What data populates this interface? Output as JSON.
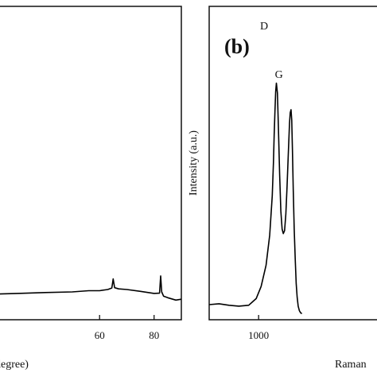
{
  "chart_data": [
    {
      "panel": "a",
      "type": "line",
      "title": "",
      "xlabel": "degree)",
      "ylabel": "",
      "xlim": [
        22,
        90
      ],
      "ylim": [
        0,
        100
      ],
      "xticks": [
        60,
        80
      ],
      "xtick_labels": [
        "60",
        "80"
      ],
      "grid": false,
      "series": [
        {
          "x": [
            22,
            30,
            40,
            50,
            56,
            60,
            63,
            64.5,
            65,
            65.5,
            67,
            70,
            75,
            80,
            82,
            82.4,
            82.8,
            83.5,
            85,
            88,
            90
          ],
          "y": [
            8.5,
            8.7,
            9.0,
            9.2,
            9.6,
            9.6,
            10.0,
            10.5,
            13.5,
            10.6,
            10.2,
            10.0,
            9.4,
            8.7,
            8.8,
            14.5,
            9.2,
            7.8,
            7.3,
            6.5,
            6.8
          ]
        }
      ]
    },
    {
      "panel": "b",
      "type": "line",
      "title": "",
      "xlabel": "Raman",
      "ylabel": "Intensity (a.u.)",
      "panel_label": "(b)",
      "xlim": [
        800,
        1540
      ],
      "ylim": [
        0,
        100
      ],
      "xticks": [
        1000
      ],
      "xtick_labels": [
        "1000"
      ],
      "grid": false,
      "annotations": [
        {
          "text": "D",
          "x": 1022,
          "y": 96
        },
        {
          "text": "G",
          "x": 1082,
          "y": 80
        }
      ],
      "series": [
        {
          "x": [
            800,
            840,
            880,
            920,
            960,
            990,
            1010,
            1030,
            1045,
            1055,
            1060,
            1063,
            1066,
            1069,
            1072,
            1076,
            1080,
            1085,
            1090,
            1095,
            1100,
            1105,
            1110,
            1115,
            1120,
            1125,
            1128,
            1131,
            1134,
            1137,
            1140,
            1144,
            1148,
            1152,
            1156,
            1160,
            1165,
            1170,
            1175
          ],
          "y": [
            5,
            5.3,
            4.8,
            4.5,
            4.8,
            7,
            11,
            18,
            28,
            41,
            52,
            61,
            69,
            75.5,
            78.3,
            75,
            64,
            48,
            36,
            30,
            28.5,
            29.5,
            35,
            44,
            55,
            65,
            68.5,
            69.5,
            66,
            56,
            43,
            30,
            20,
            12,
            7.5,
            4.5,
            3,
            2.3,
            2
          ]
        }
      ]
    }
  ]
}
